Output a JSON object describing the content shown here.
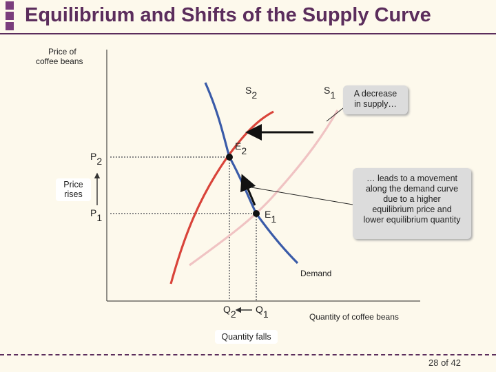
{
  "title": "Equilibrium and Shifts of the Supply Curve",
  "page_number": "28 of 42",
  "axes": {
    "y_label_line1": "Price of",
    "y_label_line2": "coffee beans",
    "x_label": "Quantity of coffee beans"
  },
  "curves": {
    "supply_new": {
      "label": "S",
      "sub": "2",
      "color": "#3a5ba8"
    },
    "supply_old": {
      "label": "S",
      "sub": "1",
      "color": "#f0c3c3"
    },
    "supply_red": {
      "color": "#d9443a"
    },
    "demand": {
      "label": "Demand",
      "color": "#3a5ba8"
    }
  },
  "points": {
    "e2": {
      "label": "E",
      "sub": "2"
    },
    "e1": {
      "label": "E",
      "sub": "1"
    },
    "p2": {
      "label": "P",
      "sub": "2"
    },
    "p1": {
      "label": "P",
      "sub": "1"
    },
    "q2": {
      "label": "Q",
      "sub": "2"
    },
    "q1": {
      "label": "Q",
      "sub": "1"
    }
  },
  "callouts": {
    "decrease_line1": "A decrease",
    "decrease_line2": "in supply…",
    "movement_line1": "… leads to a movement",
    "movement_line2": "along the demand curve",
    "movement_line3": "due to a higher",
    "movement_line4": "equilibrium price and",
    "movement_line5": "lower equilibrium quantity",
    "price_line1": "Price",
    "price_line2": "rises",
    "quantity": "Quantity falls"
  },
  "colors": {
    "title": "#5b2d5c",
    "background": "#fdf9ec",
    "callout_bg": "#dcdcdc"
  }
}
